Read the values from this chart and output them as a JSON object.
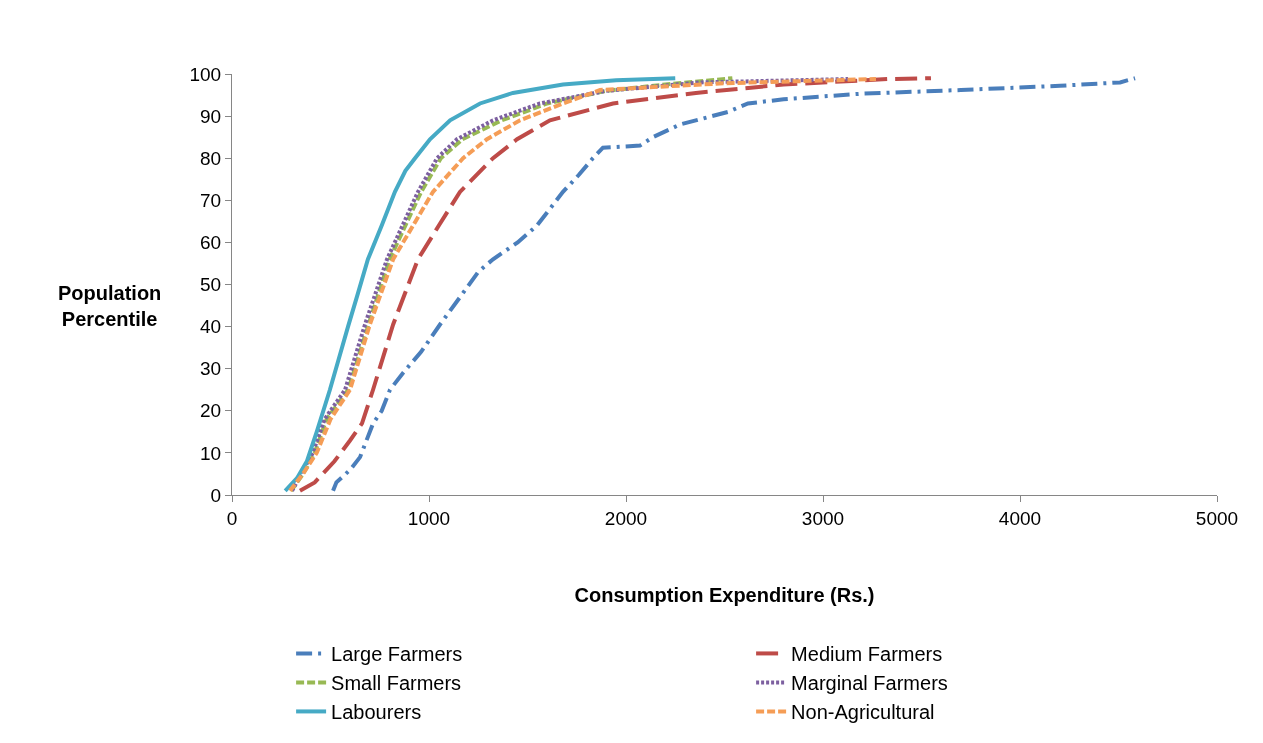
{
  "chart_data": {
    "type": "line",
    "xlabel": "Consumption Expenditure (Rs.)",
    "ylabel": "Population\nPercentile",
    "xlim": [
      0,
      5000
    ],
    "xticks": [
      0,
      1000,
      2000,
      3000,
      4000,
      5000
    ],
    "ylim": [
      0,
      100
    ],
    "yticks": [
      0,
      10,
      20,
      30,
      40,
      50,
      60,
      70,
      80,
      90,
      100
    ],
    "legend": "bottom",
    "marker": "none",
    "series": [
      {
        "name": "Large Farmers",
        "color": "#4a7ebb",
        "line_style": "dashdot",
        "x": [
          513,
          530,
          600,
          650,
          716,
          760,
          802,
          868,
          960,
          1056,
          1173,
          1250,
          1325,
          1450,
          1548,
          1680,
          1760,
          1832,
          1883,
          2071,
          2137,
          2274,
          2518,
          2619,
          2800,
          3188,
          3700,
          4203,
          4508,
          4584
        ],
        "values": [
          1,
          3,
          6,
          9,
          17,
          20,
          25,
          29,
          34,
          40.5,
          48,
          53,
          56,
          60,
          64,
          72,
          76,
          80,
          82.5,
          83,
          85,
          88,
          91,
          93,
          94,
          95.3,
          96.2,
          97.2,
          98,
          99
        ]
      },
      {
        "name": "Medium Farmers",
        "color": "#be4b48",
        "line_style": "longdash",
        "x": [
          345,
          420,
          520,
          600,
          660,
          716,
          818,
          944,
          1050,
          1157,
          1325,
          1447,
          1614,
          1934,
          2355,
          2800,
          3330,
          3548
        ],
        "values": [
          1,
          3,
          8,
          13,
          17,
          25,
          40.5,
          56,
          64,
          72,
          80,
          84.5,
          89,
          93,
          95.5,
          97.5,
          98.8,
          99
        ]
      },
      {
        "name": "Small Farmers",
        "color": "#98b954",
        "line_style": "dash",
        "x": [
          300,
          360,
          420,
          480,
          590,
          690,
          800,
          960,
          1060,
          1170,
          1370,
          1600,
          1900,
          2200,
          2540
        ],
        "values": [
          1,
          5,
          10,
          18,
          25,
          40,
          56,
          72,
          80,
          84.5,
          89,
          93,
          96,
          97.5,
          99
        ]
      },
      {
        "name": "Marginal Farmers",
        "color": "#7d60a0",
        "line_style": "dot",
        "x": [
          305,
          350,
          410,
          470,
          574,
          675,
          787,
          944,
          1041,
          1142,
          1325,
          1563,
          1900,
          2376,
          3127
        ],
        "values": [
          1,
          5,
          10,
          18,
          25,
          40.5,
          56,
          72,
          80,
          84.5,
          89,
          93,
          96,
          98,
          98.8
        ]
      },
      {
        "name": "Labourers",
        "color": "#46aac5",
        "line_style": "solid",
        "x": [
          270,
          330,
          380,
          430,
          497,
          540,
          589,
          640,
          690,
          760,
          827,
          880,
          929,
          1005,
          1107,
          1259,
          1426,
          1680,
          1950,
          2250
        ],
        "values": [
          1,
          4,
          8,
          15,
          25,
          32,
          40,
          48,
          56,
          64,
          72,
          77,
          80,
          84.5,
          89,
          93,
          95.5,
          97.5,
          98.5,
          99
        ]
      },
      {
        "name": "Non-Agricultural",
        "color": "#f59d56",
        "line_style": "dash",
        "x": [
          294,
          360,
          430,
          500,
          599,
          700,
          818,
          1020,
          1173,
          1294,
          1462,
          1680,
          1868,
          2500,
          3269
        ],
        "values": [
          1,
          5,
          10,
          18,
          25,
          40.5,
          56,
          72,
          80,
          84.5,
          89,
          93,
          96.2,
          97.8,
          98.8
        ]
      }
    ]
  }
}
